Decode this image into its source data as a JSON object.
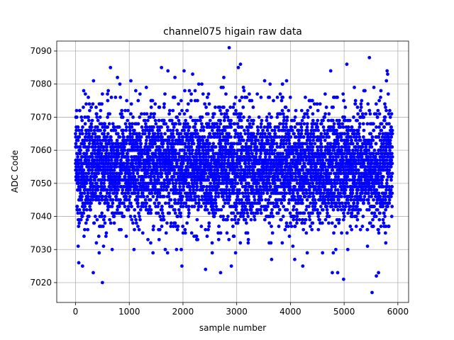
{
  "chart_data": {
    "type": "scatter",
    "title": "channel075 higain raw data",
    "xlabel": "sample number",
    "ylabel": "ADC Code",
    "xlim": [
      -350,
      6200
    ],
    "ylim": [
      7014,
      7093
    ],
    "xticks": [
      0,
      1000,
      2000,
      3000,
      4000,
      5000,
      6000
    ],
    "yticks": [
      7020,
      7030,
      7040,
      7050,
      7060,
      7070,
      7080,
      7090
    ],
    "grid": true,
    "marker_color": "#0000ff",
    "series": [
      {
        "n_points": 5900,
        "x_range": [
          0,
          5900
        ],
        "center": 7055,
        "band": [
          7035,
          7075
        ],
        "outliers": [
          {
            "x": 60,
            "y": 7026
          },
          {
            "x": 130,
            "y": 7025
          },
          {
            "x": 330,
            "y": 7023
          },
          {
            "x": 500,
            "y": 7020
          },
          {
            "x": 650,
            "y": 7085
          },
          {
            "x": 780,
            "y": 7082
          },
          {
            "x": 1030,
            "y": 7081
          },
          {
            "x": 1600,
            "y": 7085
          },
          {
            "x": 1720,
            "y": 7084
          },
          {
            "x": 1850,
            "y": 7082
          },
          {
            "x": 1980,
            "y": 7025
          },
          {
            "x": 2020,
            "y": 7084
          },
          {
            "x": 2180,
            "y": 7083
          },
          {
            "x": 2420,
            "y": 7024
          },
          {
            "x": 2700,
            "y": 7023
          },
          {
            "x": 2760,
            "y": 7082
          },
          {
            "x": 2860,
            "y": 7091
          },
          {
            "x": 2900,
            "y": 7025
          },
          {
            "x": 3030,
            "y": 7085
          },
          {
            "x": 3070,
            "y": 7086
          },
          {
            "x": 3520,
            "y": 7081
          },
          {
            "x": 3650,
            "y": 7027
          },
          {
            "x": 4080,
            "y": 7027
          },
          {
            "x": 4230,
            "y": 7025
          },
          {
            "x": 4750,
            "y": 7084
          },
          {
            "x": 4780,
            "y": 7023
          },
          {
            "x": 4880,
            "y": 7023
          },
          {
            "x": 4990,
            "y": 7021
          },
          {
            "x": 5050,
            "y": 7086
          },
          {
            "x": 5470,
            "y": 7088
          },
          {
            "x": 5520,
            "y": 7017
          },
          {
            "x": 5600,
            "y": 7022
          },
          {
            "x": 5640,
            "y": 7023
          },
          {
            "x": 5810,
            "y": 7083
          },
          {
            "x": 5800,
            "y": 7084
          }
        ]
      }
    ]
  }
}
